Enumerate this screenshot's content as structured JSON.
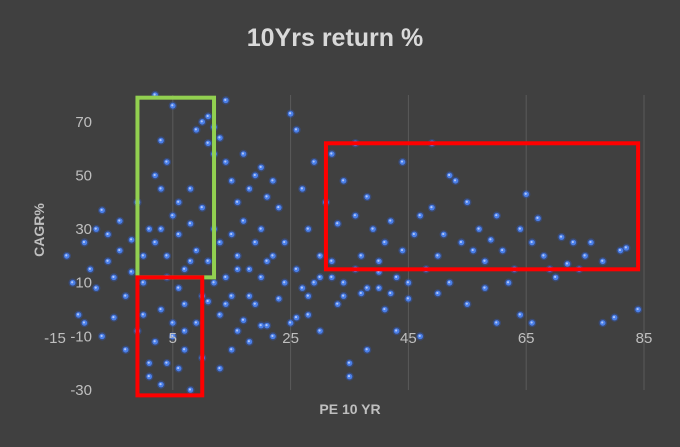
{
  "chart_data": {
    "type": "scatter",
    "title": "10Yrs return %",
    "xlabel": "PE 10 YR",
    "ylabel": "CAGR%",
    "xlim": [
      -15,
      85
    ],
    "ylim": [
      -30,
      80
    ],
    "xticks": [
      -15,
      5,
      25,
      45,
      65,
      85
    ],
    "yticks": [
      -30,
      -10,
      10,
      30,
      50,
      70
    ],
    "x_tick_labels": [
      "-15",
      "5",
      "25",
      "45",
      "65",
      "85"
    ],
    "y_tick_labels": [
      "-30",
      "-10",
      "10",
      "30",
      "50",
      "70"
    ],
    "grid": "vertical lines only",
    "legend": "none",
    "colors": {
      "background": "#404040",
      "marker": "#4a7fe8",
      "marker_glow": "#2f5fd6",
      "grid": "#5a5a5a",
      "text": "#bfbfbf",
      "title": "#d9d9d9"
    },
    "series": [
      {
        "points": [
          [
            -13,
            20
          ],
          [
            -12,
            10
          ],
          [
            -11,
            -2
          ],
          [
            -10,
            -5
          ],
          [
            -10,
            25
          ],
          [
            -9,
            15
          ],
          [
            -8,
            30
          ],
          [
            -8,
            8
          ],
          [
            -7,
            37
          ],
          [
            -7,
            -10
          ],
          [
            -6,
            18
          ],
          [
            -6,
            28
          ],
          [
            -5,
            12
          ],
          [
            -5,
            -3
          ],
          [
            -4,
            22
          ],
          [
            -4,
            33
          ],
          [
            -3,
            5
          ],
          [
            -3,
            -15
          ],
          [
            -2,
            26
          ],
          [
            -2,
            14
          ],
          [
            -1,
            -8
          ],
          [
            -1,
            40
          ],
          [
            0,
            20
          ],
          [
            0,
            10
          ],
          [
            0,
            -2
          ],
          [
            1,
            30
          ],
          [
            1,
            -20
          ],
          [
            1,
            -25
          ],
          [
            2,
            80
          ],
          [
            2,
            50
          ],
          [
            2,
            -12
          ],
          [
            3,
            63
          ],
          [
            3,
            45
          ],
          [
            3,
            -28
          ],
          [
            4,
            -20
          ],
          [
            4,
            55
          ],
          [
            5,
            76
          ],
          [
            5,
            -5
          ],
          [
            6,
            -22
          ],
          [
            6,
            40
          ],
          [
            7,
            -8
          ],
          [
            7,
            -15
          ],
          [
            8,
            -30
          ],
          [
            8,
            45
          ],
          [
            9,
            67
          ],
          [
            10,
            70
          ],
          [
            10,
            -18
          ],
          [
            11,
            72
          ],
          [
            11,
            62
          ],
          [
            12,
            68
          ],
          [
            12,
            58
          ],
          [
            13,
            64
          ],
          [
            13,
            -22
          ],
          [
            14,
            78
          ],
          [
            14,
            55
          ],
          [
            15,
            48
          ],
          [
            15,
            -15
          ],
          [
            16,
            -8
          ],
          [
            16,
            40
          ],
          [
            17,
            58
          ],
          [
            18,
            45
          ],
          [
            18,
            -12
          ],
          [
            19,
            50
          ],
          [
            20,
            53
          ],
          [
            20,
            -6
          ],
          [
            21,
            42
          ],
          [
            22,
            -10
          ],
          [
            22,
            48
          ],
          [
            23,
            38
          ],
          [
            24,
            25
          ],
          [
            25,
            73
          ],
          [
            25,
            -5
          ],
          [
            26,
            67
          ],
          [
            27,
            45
          ],
          [
            27,
            8
          ],
          [
            28,
            30
          ],
          [
            28,
            -2
          ],
          [
            29,
            55
          ],
          [
            30,
            20
          ],
          [
            30,
            -8
          ],
          [
            31,
            40
          ],
          [
            32,
            58
          ],
          [
            32,
            12
          ],
          [
            33,
            32
          ],
          [
            34,
            5
          ],
          [
            34,
            48
          ],
          [
            35,
            -20
          ],
          [
            35,
            -25
          ],
          [
            36,
            35
          ],
          [
            36,
            62
          ],
          [
            37,
            20
          ],
          [
            38,
            42
          ],
          [
            38,
            -15
          ],
          [
            39,
            30
          ],
          [
            40,
            18
          ],
          [
            40,
            8
          ],
          [
            41,
            25
          ],
          [
            42,
            33
          ],
          [
            43,
            -8
          ],
          [
            43,
            12
          ],
          [
            44,
            55
          ],
          [
            44,
            22
          ],
          [
            45,
            10
          ],
          [
            46,
            28
          ],
          [
            47,
            35
          ],
          [
            47,
            -10
          ],
          [
            48,
            15
          ],
          [
            49,
            38
          ],
          [
            49,
            62
          ],
          [
            50,
            20
          ],
          [
            51,
            28
          ],
          [
            52,
            50
          ],
          [
            52,
            10
          ],
          [
            53,
            48
          ],
          [
            54,
            25
          ],
          [
            55,
            40
          ],
          [
            56,
            22
          ],
          [
            57,
            30
          ],
          [
            58,
            18
          ],
          [
            59,
            26
          ],
          [
            60,
            35
          ],
          [
            60,
            -5
          ],
          [
            61,
            22
          ],
          [
            62,
            10
          ],
          [
            63,
            15
          ],
          [
            64,
            -2
          ],
          [
            64,
            30
          ],
          [
            65,
            43
          ],
          [
            66,
            25
          ],
          [
            66,
            -5
          ],
          [
            67,
            34
          ],
          [
            68,
            20
          ],
          [
            69,
            15
          ],
          [
            70,
            12
          ],
          [
            71,
            27
          ],
          [
            72,
            17
          ],
          [
            73,
            25
          ],
          [
            74,
            15
          ],
          [
            75,
            20
          ],
          [
            76,
            25
          ],
          [
            78,
            18
          ],
          [
            78,
            -5
          ],
          [
            80,
            -3
          ],
          [
            81,
            22
          ],
          [
            82,
            23
          ],
          [
            84,
            0
          ],
          [
            2,
            25
          ],
          [
            3,
            30
          ],
          [
            4,
            20
          ],
          [
            5,
            35
          ],
          [
            6,
            28
          ],
          [
            7,
            15
          ],
          [
            8,
            32
          ],
          [
            9,
            22
          ],
          [
            10,
            38
          ],
          [
            11,
            18
          ],
          [
            12,
            30
          ],
          [
            13,
            25
          ],
          [
            14,
            12
          ],
          [
            15,
            28
          ],
          [
            16,
            20
          ],
          [
            17,
            33
          ],
          [
            18,
            15
          ],
          [
            19,
            25
          ],
          [
            20,
            30
          ],
          [
            21,
            18
          ],
          [
            4,
            12
          ],
          [
            6,
            8
          ],
          [
            8,
            18
          ],
          [
            10,
            5
          ],
          [
            12,
            10
          ],
          [
            14,
            2
          ],
          [
            16,
            15
          ],
          [
            18,
            5
          ],
          [
            20,
            12
          ],
          [
            22,
            20
          ],
          [
            24,
            10
          ],
          [
            26,
            15
          ],
          [
            28,
            5
          ],
          [
            30,
            12
          ],
          [
            32,
            18
          ],
          [
            34,
            10
          ],
          [
            36,
            15
          ],
          [
            38,
            8
          ],
          [
            40,
            14
          ],
          [
            42,
            6
          ],
          [
            3,
            0
          ],
          [
            5,
            -10
          ],
          [
            7,
            2
          ],
          [
            9,
            -5
          ],
          [
            11,
            3
          ],
          [
            13,
            -2
          ],
          [
            15,
            5
          ],
          [
            17,
            -4
          ],
          [
            19,
            2
          ],
          [
            21,
            -6
          ],
          [
            23,
            4
          ],
          [
            26,
            -3
          ],
          [
            29,
            10
          ],
          [
            33,
            2
          ],
          [
            37,
            6
          ],
          [
            41,
            0
          ],
          [
            45,
            4
          ],
          [
            50,
            6
          ],
          [
            55,
            2
          ],
          [
            58,
            8
          ]
        ]
      }
    ],
    "annotations": [
      {
        "type": "box",
        "color": "#92d050",
        "x": [
          -1,
          12
        ],
        "y": [
          12,
          79
        ]
      },
      {
        "type": "box",
        "color": "#ff0000",
        "x": [
          -1,
          10
        ],
        "y": [
          -32,
          12
        ]
      },
      {
        "type": "box",
        "color": "#ff0000",
        "x": [
          31,
          84
        ],
        "y": [
          15,
          62
        ]
      }
    ]
  }
}
